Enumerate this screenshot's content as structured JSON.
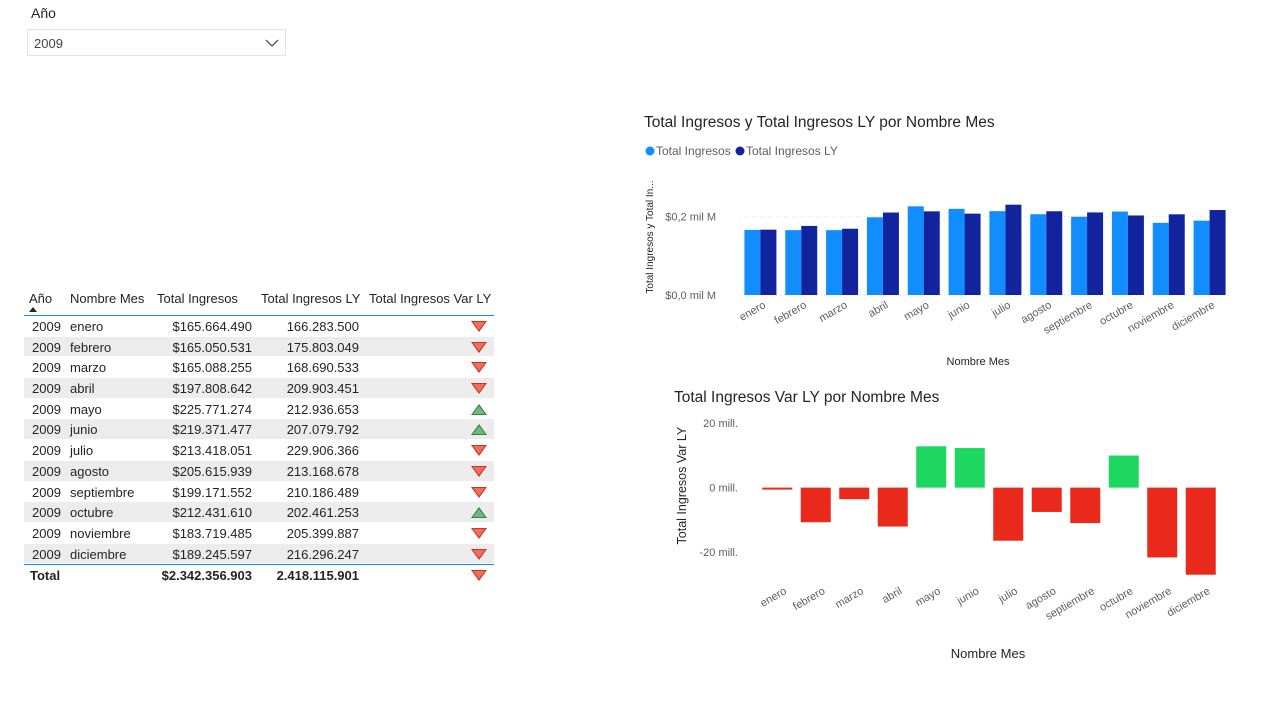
{
  "slicer": {
    "title": "Año",
    "value": "2009"
  },
  "table": {
    "headers": [
      "Año",
      "Nombre Mes",
      "Total Ingresos",
      "Total Ingresos LY",
      "Total Ingresos Var LY"
    ],
    "rows": [
      {
        "year": "2009",
        "month": "enero",
        "ingresos": "$165.664.490",
        "ly": "166.283.500",
        "trend": "down"
      },
      {
        "year": "2009",
        "month": "febrero",
        "ingresos": "$165.050.531",
        "ly": "175.803.049",
        "trend": "down"
      },
      {
        "year": "2009",
        "month": "marzo",
        "ingresos": "$165.088.255",
        "ly": "168.690.533",
        "trend": "down"
      },
      {
        "year": "2009",
        "month": "abril",
        "ingresos": "$197.808.642",
        "ly": "209.903.451",
        "trend": "down"
      },
      {
        "year": "2009",
        "month": "mayo",
        "ingresos": "$225.771.274",
        "ly": "212.936.653",
        "trend": "up"
      },
      {
        "year": "2009",
        "month": "junio",
        "ingresos": "$219.371.477",
        "ly": "207.079.792",
        "trend": "up"
      },
      {
        "year": "2009",
        "month": "julio",
        "ingresos": "$213.418.051",
        "ly": "229.906.366",
        "trend": "down"
      },
      {
        "year": "2009",
        "month": "agosto",
        "ingresos": "$205.615.939",
        "ly": "213.168.678",
        "trend": "down"
      },
      {
        "year": "2009",
        "month": "septiembre",
        "ingresos": "$199.171.552",
        "ly": "210.186.489",
        "trend": "down"
      },
      {
        "year": "2009",
        "month": "octubre",
        "ingresos": "$212.431.610",
        "ly": "202.461.253",
        "trend": "up"
      },
      {
        "year": "2009",
        "month": "noviembre",
        "ingresos": "$183.719.485",
        "ly": "205.399.887",
        "trend": "down"
      },
      {
        "year": "2009",
        "month": "diciembre",
        "ingresos": "$189.245.597",
        "ly": "216.296.247",
        "trend": "down"
      }
    ],
    "total": {
      "label": "Total",
      "ingresos": "$2.342.356.903",
      "ly": "2.418.115.901",
      "trend": "down"
    }
  },
  "colors": {
    "ingresos": "#118dff",
    "ingresos_ly": "#12239e",
    "positive": "#1ed760",
    "negative": "#e8291c",
    "grid": "#dddddd"
  },
  "chart_data": [
    {
      "type": "bar",
      "title": "Total Ingresos y Total Ingresos LY por Nombre Mes",
      "xlabel": "Nombre Mes",
      "ylabel": "Total Ingresos y Total In...",
      "yticks": [
        "$0,0 mil M",
        "$0,2 mil M"
      ],
      "ylim": [
        0,
        0.28
      ],
      "legend_position": "top-left",
      "categories": [
        "enero",
        "febrero",
        "marzo",
        "abril",
        "mayo",
        "junio",
        "julio",
        "agosto",
        "septiembre",
        "octubre",
        "noviembre",
        "diciembre"
      ],
      "series": [
        {
          "name": "Total Ingresos",
          "values": [
            0.16566449,
            0.165050531,
            0.165088255,
            0.197808642,
            0.225771274,
            0.219371477,
            0.213418051,
            0.205615939,
            0.199171552,
            0.21243161,
            0.183719485,
            0.189245597
          ]
        },
        {
          "name": "Total Ingresos LY",
          "values": [
            0.1662835,
            0.175803049,
            0.168690533,
            0.209903451,
            0.212936653,
            0.207079792,
            0.229906366,
            0.213168678,
            0.210186489,
            0.202461253,
            0.205399887,
            0.216296247
          ]
        }
      ]
    },
    {
      "type": "bar",
      "title": "Total Ingresos Var LY por Nombre Mes",
      "xlabel": "Nombre Mes",
      "ylabel": "Total Ingresos Var LY",
      "yticks": [
        "-20 mill.",
        "0 mill.",
        "20 mill."
      ],
      "ylim": [
        -29,
        21
      ],
      "categories": [
        "enero",
        "febrero",
        "marzo",
        "abril",
        "mayo",
        "junio",
        "julio",
        "agosto",
        "septiembre",
        "octubre",
        "noviembre",
        "diciembre"
      ],
      "values": [
        -0.62,
        -10.75,
        -3.6,
        -12.09,
        12.83,
        12.29,
        -16.49,
        -7.55,
        -11.01,
        9.97,
        -21.68,
        -27.05
      ]
    }
  ]
}
